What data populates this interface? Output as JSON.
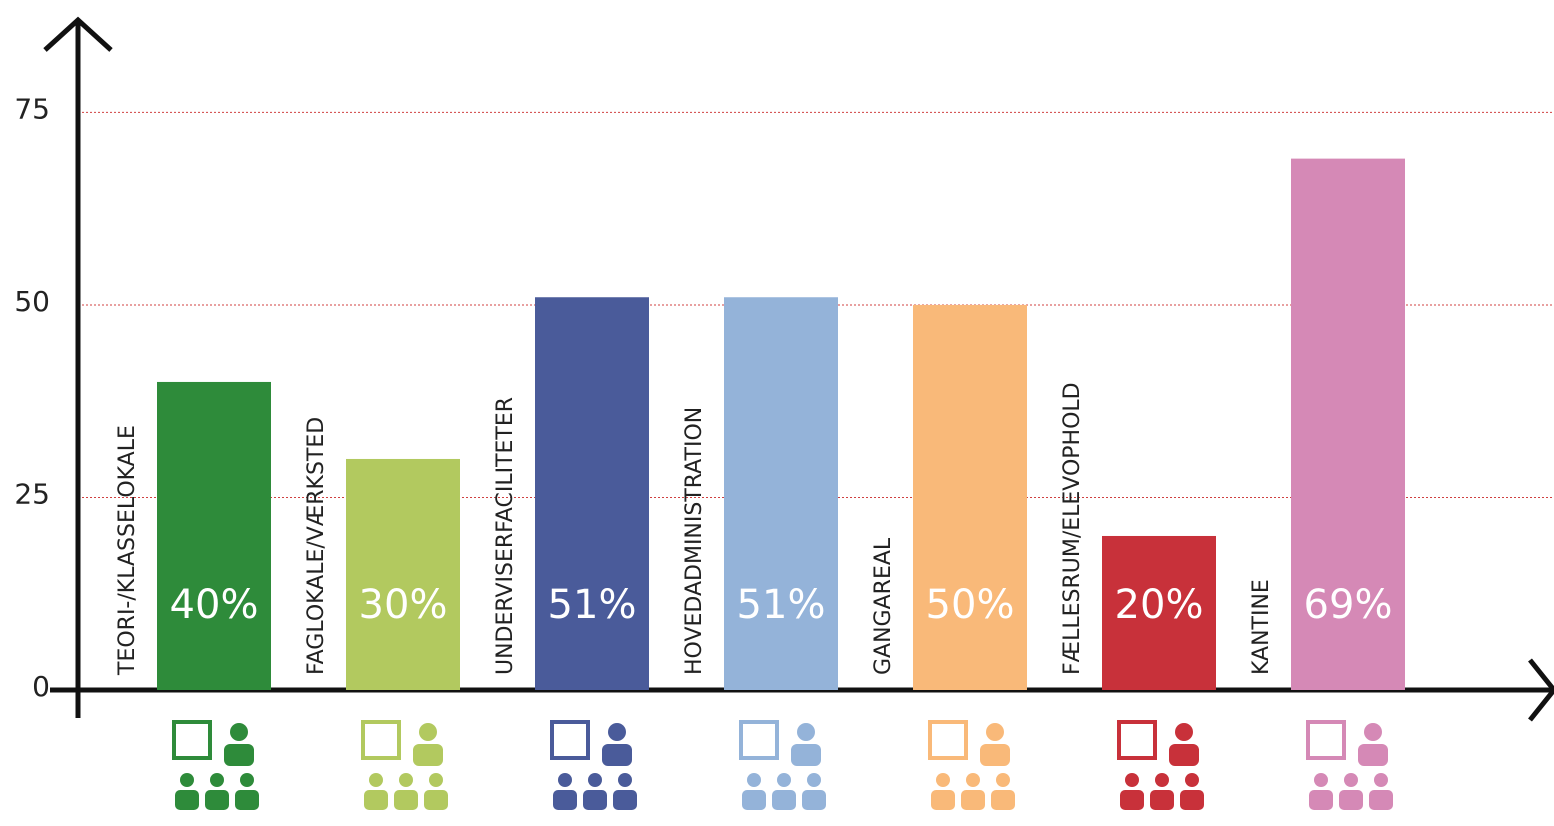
{
  "chart_data": {
    "type": "bar",
    "categories": [
      "TEORI-/KLASSELOKALE",
      "FAGLOKALE/VÆRKSTED",
      "UNDERVISERFACILITETER",
      "HOVEDADMINISTRATION",
      "GANGAREAL",
      "FÆLLESRUM/ELEVOPHOLD",
      "KANTINE"
    ],
    "values": [
      40,
      30,
      51,
      51,
      50,
      20,
      69
    ],
    "value_labels": [
      "40%",
      "30%",
      "51%",
      "51%",
      "50%",
      "20%",
      "69%"
    ],
    "colors": [
      "#2e8b3a",
      "#b2c95f",
      "#4a5b9a",
      "#94b3d9",
      "#f9b979",
      "#c8313a",
      "#d589b6"
    ],
    "ylim": [
      0,
      87
    ],
    "yticks": [
      0,
      25,
      50,
      75
    ],
    "grid": true
  }
}
